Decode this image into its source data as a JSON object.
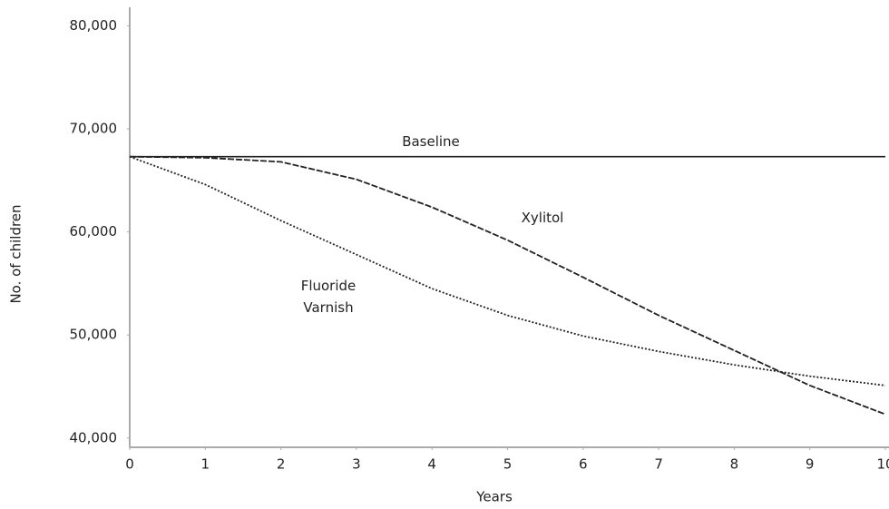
{
  "chart_data": {
    "type": "line",
    "xlabel": "Years",
    "ylabel": "No. of children",
    "x": [
      0,
      1,
      2,
      3,
      4,
      5,
      6,
      7,
      8,
      9,
      10
    ],
    "series": [
      {
        "name": "Baseline",
        "color": "#222222",
        "dash": "solid",
        "values": [
          67300,
          67300,
          67300,
          67300,
          67300,
          67300,
          67300,
          67300,
          67300,
          67300,
          67300
        ]
      },
      {
        "name": "Xylitol",
        "color": "#222222",
        "dash": "dashed",
        "values": [
          67300,
          67200,
          66800,
          65100,
          62400,
          59200,
          55600,
          51900,
          48500,
          45100,
          42300
        ]
      },
      {
        "name": "Fluoride Varnish",
        "color": "#222222",
        "dash": "dotted",
        "values": [
          67300,
          64600,
          61100,
          57800,
          54500,
          51900,
          49900,
          48400,
          47100,
          46000,
          45100
        ]
      }
    ],
    "xlim": [
      0,
      10
    ],
    "xticks": [
      0,
      1,
      2,
      3,
      4,
      5,
      6,
      7,
      8,
      9,
      10
    ],
    "ylim": [
      39100,
      81800
    ],
    "yticks": [
      {
        "value": 40000,
        "label": "40,000"
      },
      {
        "value": 50000,
        "label": "50,000"
      },
      {
        "value": 60000,
        "label": "60,000"
      },
      {
        "value": 70000,
        "label": "70,000"
      },
      {
        "value": 80000,
        "label": "80,000"
      }
    ],
    "grid": false
  }
}
